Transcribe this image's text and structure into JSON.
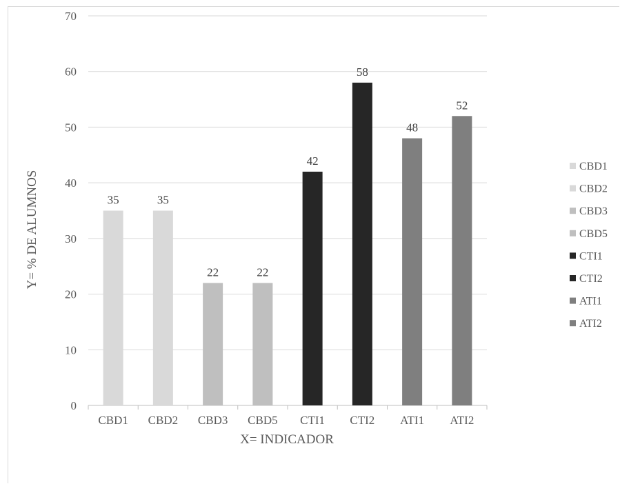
{
  "chart_data": {
    "type": "bar",
    "title": "",
    "xlabel": "X= INDICADOR",
    "ylabel": "Y= %  DE ALUMNOS",
    "ylim": [
      0,
      70
    ],
    "yticks": [
      0,
      10,
      20,
      30,
      40,
      50,
      60,
      70
    ],
    "grid": true,
    "legend_position": "right",
    "categories": [
      "CBD1",
      "CBD2",
      "CBD3",
      "CBD5",
      "CTI1",
      "CTI2",
      "ATI1",
      "ATI2"
    ],
    "values": [
      35,
      35,
      22,
      22,
      42,
      58,
      48,
      52
    ],
    "data_labels": [
      "35",
      "35",
      "22",
      "22",
      "42",
      "58",
      "48",
      "52"
    ],
    "colors": [
      "#d9d9d9",
      "#d9d9d9",
      "#bfbfbf",
      "#bfbfbf",
      "#262626",
      "#262626",
      "#7f7f7f",
      "#7f7f7f"
    ],
    "legend": [
      {
        "label": "CBD1",
        "color": "#d9d9d9"
      },
      {
        "label": "CBD2",
        "color": "#d9d9d9"
      },
      {
        "label": "CBD3",
        "color": "#bfbfbf"
      },
      {
        "label": "CBD5",
        "color": "#bfbfbf"
      },
      {
        "label": "CTI1",
        "color": "#262626"
      },
      {
        "label": "CTI2",
        "color": "#262626"
      },
      {
        "label": "ATI1",
        "color": "#7f7f7f"
      },
      {
        "label": "ATI2",
        "color": "#7f7f7f"
      }
    ]
  }
}
